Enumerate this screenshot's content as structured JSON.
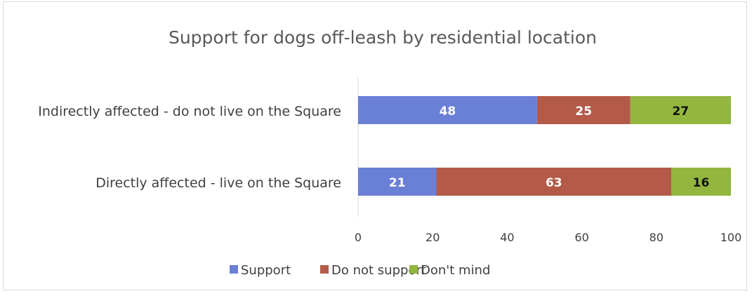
{
  "chart_data": {
    "type": "bar",
    "orientation": "horizontal",
    "stacked": true,
    "title": "Support for dogs off-leash by residential location",
    "categories": [
      "Indirectly affected - do not live on the Square",
      "Directly affected - live on the Square"
    ],
    "series": [
      {
        "name": "Support",
        "values": [
          48,
          21
        ],
        "color": "#6a7fd6",
        "label_color": "#ffffff"
      },
      {
        "name": "Do not support",
        "values": [
          25,
          63
        ],
        "color": "#b35a48",
        "label_color": "#ffffff"
      },
      {
        "name": "Don't mind",
        "values": [
          27,
          16
        ],
        "color": "#93b63f",
        "label_color": "#111111"
      }
    ],
    "xlim": [
      0,
      100
    ],
    "xticks": [
      "0",
      "20",
      "40",
      "60",
      "80",
      "100"
    ],
    "grid": false,
    "legend_position": "bottom"
  }
}
